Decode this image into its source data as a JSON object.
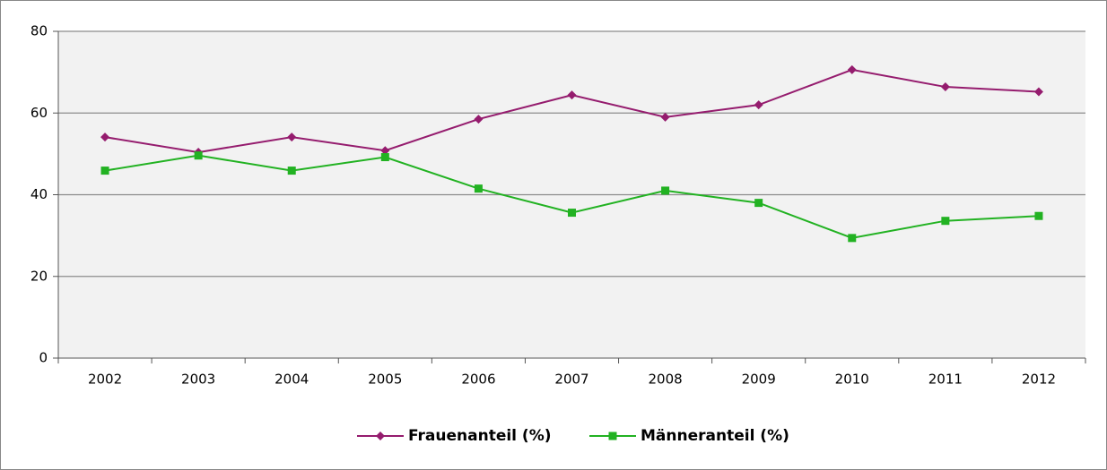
{
  "chart_data": {
    "type": "line",
    "categories": [
      "2002",
      "2003",
      "2004",
      "2005",
      "2006",
      "2007",
      "2008",
      "2009",
      "2010",
      "2011",
      "2012"
    ],
    "series": [
      {
        "name": "Frauenanteil (%)",
        "color": "#951c6e",
        "marker": "diamond",
        "values": [
          54.1,
          50.4,
          54.1,
          50.8,
          58.5,
          64.4,
          59.0,
          62.0,
          70.6,
          66.4,
          65.2
        ]
      },
      {
        "name": "Männeranteil (%)",
        "color": "#22b222",
        "marker": "square",
        "values": [
          45.9,
          49.6,
          45.9,
          49.2,
          41.5,
          35.6,
          41.0,
          38.0,
          29.4,
          33.6,
          34.8
        ]
      }
    ],
    "ylim": [
      0,
      80
    ],
    "yticks": [
      0,
      20,
      40,
      60,
      80
    ],
    "grid": true,
    "legend": "bottom"
  }
}
